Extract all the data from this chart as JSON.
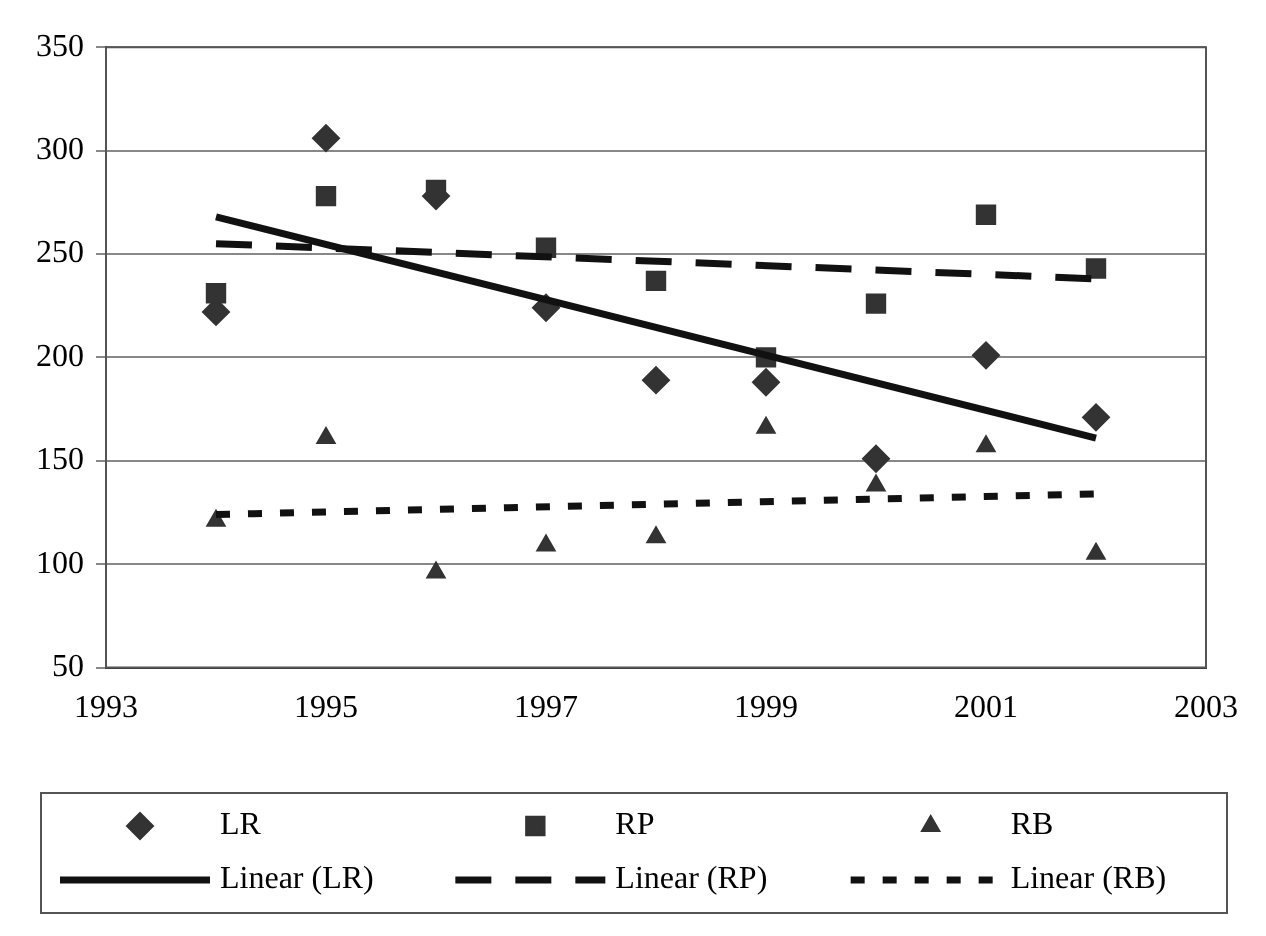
{
  "chart_data": {
    "type": "scatter",
    "xlim": [
      1993,
      2003
    ],
    "xticks": [
      1993,
      1995,
      1997,
      1999,
      2001,
      2003
    ],
    "ylim": [
      50,
      350
    ],
    "yticks": [
      50,
      100,
      150,
      200,
      250,
      300,
      350
    ],
    "grid": "y",
    "legend": "bottom",
    "series": [
      {
        "name": "LR",
        "color": "#333333",
        "marker": "diamond",
        "x": [
          1994,
          1995,
          1996,
          1997,
          1998,
          1999,
          2000,
          2001,
          2002
        ],
        "values": [
          222,
          306,
          278,
          224,
          189,
          188,
          151,
          201,
          171
        ]
      },
      {
        "name": "RP",
        "color": "#333333",
        "marker": "square",
        "x": [
          1994,
          1995,
          1996,
          1997,
          1998,
          1999,
          2000,
          2001,
          2002
        ],
        "values": [
          231,
          278,
          281,
          253,
          237,
          200,
          226,
          269,
          243
        ]
      },
      {
        "name": "RB",
        "color": "#333333",
        "marker": "triangle",
        "x": [
          1994,
          1995,
          1996,
          1997,
          1998,
          1999,
          2000,
          2001,
          2002
        ],
        "values": [
          121,
          161,
          96,
          109,
          113,
          166,
          138,
          157,
          105
        ]
      },
      {
        "name": "Linear (LR)",
        "type": "line",
        "color": "#111111",
        "marker": "none",
        "line_style": "solid",
        "x": [
          1994,
          2002
        ],
        "values": [
          268,
          161
        ]
      },
      {
        "name": "Linear (RP)",
        "type": "line",
        "color": "#111111",
        "marker": "none",
        "line_style": "dashed",
        "x": [
          1994,
          2002
        ],
        "values": [
          255,
          238
        ]
      },
      {
        "name": "Linear (RB)",
        "type": "line",
        "color": "#111111",
        "marker": "none",
        "line_style": "dotted",
        "x": [
          1994,
          2002
        ],
        "values": [
          124,
          134
        ]
      }
    ]
  }
}
